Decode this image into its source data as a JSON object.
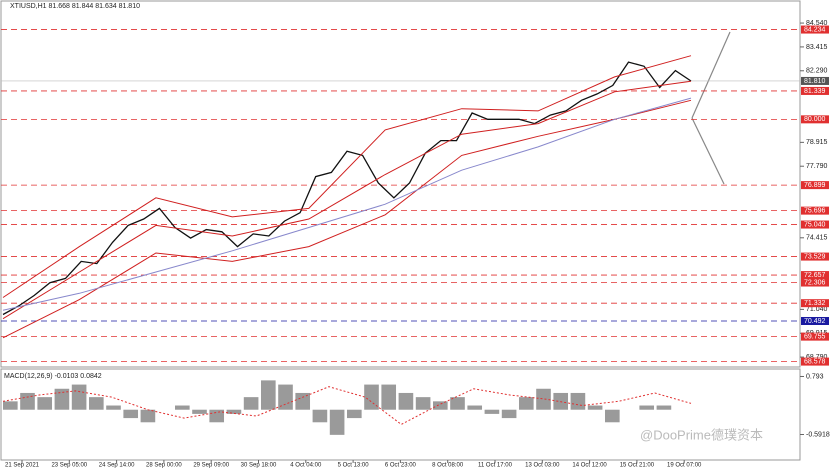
{
  "header": "XTIUSD,H1  81.668 81.844 81.634 81.810",
  "watermark": "@DooPrime德璞资本",
  "chart_data": [
    {
      "type": "line",
      "xticks": [
        "21 Sep 2021",
        "23 Sep 05:00",
        "24 Sep 14:00",
        "28 Sep 00:00",
        "29 Sep 09:00",
        "30 Sep 18:00",
        "4 Oct 04:00",
        "5 Oct 13:00",
        "6 Oct 23:00",
        "8 Oct 08:00",
        "11 Oct 17:00",
        "13 Oct 03:00",
        "14 Oct 12:00",
        "15 Oct 21:00",
        "19 Oct 07:00"
      ],
      "ylim": [
        68.37,
        85.25
      ],
      "yticks": [
        {
          "value": 84.54,
          "label": "84.540"
        },
        {
          "value": 83.415,
          "label": "83.415"
        },
        {
          "value": 82.29,
          "label": "82.290"
        },
        {
          "value": 78.915,
          "label": "78.915"
        },
        {
          "value": 77.79,
          "label": "77.790"
        },
        {
          "value": 74.415,
          "label": "74.415"
        },
        {
          "value": 71.04,
          "label": "71.040"
        },
        {
          "value": 69.915,
          "label": "69.915"
        },
        {
          "value": 68.79,
          "label": "68.790"
        }
      ],
      "levels": [
        {
          "value": 84.234,
          "label": "84.234",
          "color": "#e03030"
        },
        {
          "value": 81.339,
          "label": "81.339",
          "color": "#e03030"
        },
        {
          "value": 80,
          "label": "80.000",
          "color": "#e03030"
        },
        {
          "value": 76.899,
          "label": "76.899",
          "color": "#e03030"
        },
        {
          "value": 75.696,
          "label": "75.696",
          "color": "#e03030"
        },
        {
          "value": 75.04,
          "label": "75.040",
          "color": "#e03030"
        },
        {
          "value": 73.529,
          "label": "73.529",
          "color": "#e03030"
        },
        {
          "value": 72.657,
          "label": "72.657",
          "color": "#e03030"
        },
        {
          "value": 72.306,
          "label": "72.306",
          "color": "#e03030"
        },
        {
          "value": 71.332,
          "label": "71.332",
          "color": "#e03030"
        },
        {
          "value": 70.492,
          "label": "70.492",
          "color": "#1a1aa0"
        },
        {
          "value": 69.755,
          "label": "69.755",
          "color": "#e03030"
        },
        {
          "value": 68.578,
          "label": "68.578",
          "color": "#e03030"
        }
      ],
      "current": {
        "value": 81.81,
        "label": "81.810",
        "color": "#555555"
      },
      "series": [
        {
          "color": "#111111",
          "values": [
            70.8,
            71.2,
            71.7,
            72.3,
            72.5,
            73.3,
            73.2,
            74.2,
            75.0,
            75.3,
            75.8,
            74.9,
            74.4,
            74.8,
            74.7,
            74.0,
            74.6,
            74.5,
            75.2,
            75.6,
            77.3,
            77.5,
            78.5,
            78.3,
            77.0,
            76.3,
            77.0,
            78.4,
            79.0,
            79.0,
            80.3,
            80.0,
            80.0,
            80.0,
            79.8,
            80.2,
            80.4,
            80.9,
            81.2,
            81.6,
            82.7,
            82.5,
            81.5,
            82.3,
            81.81
          ]
        },
        {
          "color": "#d02020",
          "values": [
            71.6,
            74.0,
            76.3,
            75.4,
            75.8,
            79.5,
            80.5,
            80.4,
            82.0,
            83.0
          ]
        },
        {
          "color": "#d02020",
          "values": [
            70.6,
            72.8,
            75.0,
            74.5,
            75.3,
            77.4,
            79.3,
            79.8,
            81.3,
            81.8
          ]
        },
        {
          "color": "#d02020",
          "values": [
            69.7,
            71.5,
            73.7,
            73.3,
            74.0,
            75.5,
            78.3,
            79.2,
            80.0,
            80.9
          ]
        },
        {
          "color": "#8888cc",
          "values": [
            71.0,
            71.8,
            72.8,
            73.8,
            74.9,
            76.0,
            77.6,
            78.7,
            80.0,
            81.0
          ]
        }
      ]
    },
    {
      "type": "bar",
      "label": "MACD(12,26,9) -0.0103 0.0842",
      "color": "#9a9a9a",
      "ylim": [
        -1.2,
        0.9
      ],
      "yticks": [
        0.793,
        -0.5918
      ],
      "values": [
        0.2,
        0.4,
        0.3,
        0.5,
        0.6,
        0.3,
        0.1,
        -0.2,
        -0.3,
        0.0,
        0.1,
        -0.1,
        -0.3,
        -0.1,
        0.3,
        0.7,
        0.6,
        0.4,
        -0.3,
        -0.6,
        -0.2,
        0.6,
        0.6,
        0.4,
        0.3,
        0.2,
        0.3,
        0.1,
        -0.1,
        -0.2,
        0.3,
        0.5,
        0.4,
        0.4,
        0.1,
        -0.3,
        0.0,
        0.1,
        0.1,
        0.0
      ],
      "signal": {
        "color": "#e03030",
        "values": [
          0.2,
          0.35,
          0.45,
          0.3,
          0.0,
          -0.2,
          -0.05,
          -0.15,
          0.2,
          0.55,
          0.3,
          -0.35,
          0.1,
          0.5,
          0.35,
          0.25,
          0.1,
          0.2,
          0.4,
          0.15
        ]
      }
    }
  ]
}
